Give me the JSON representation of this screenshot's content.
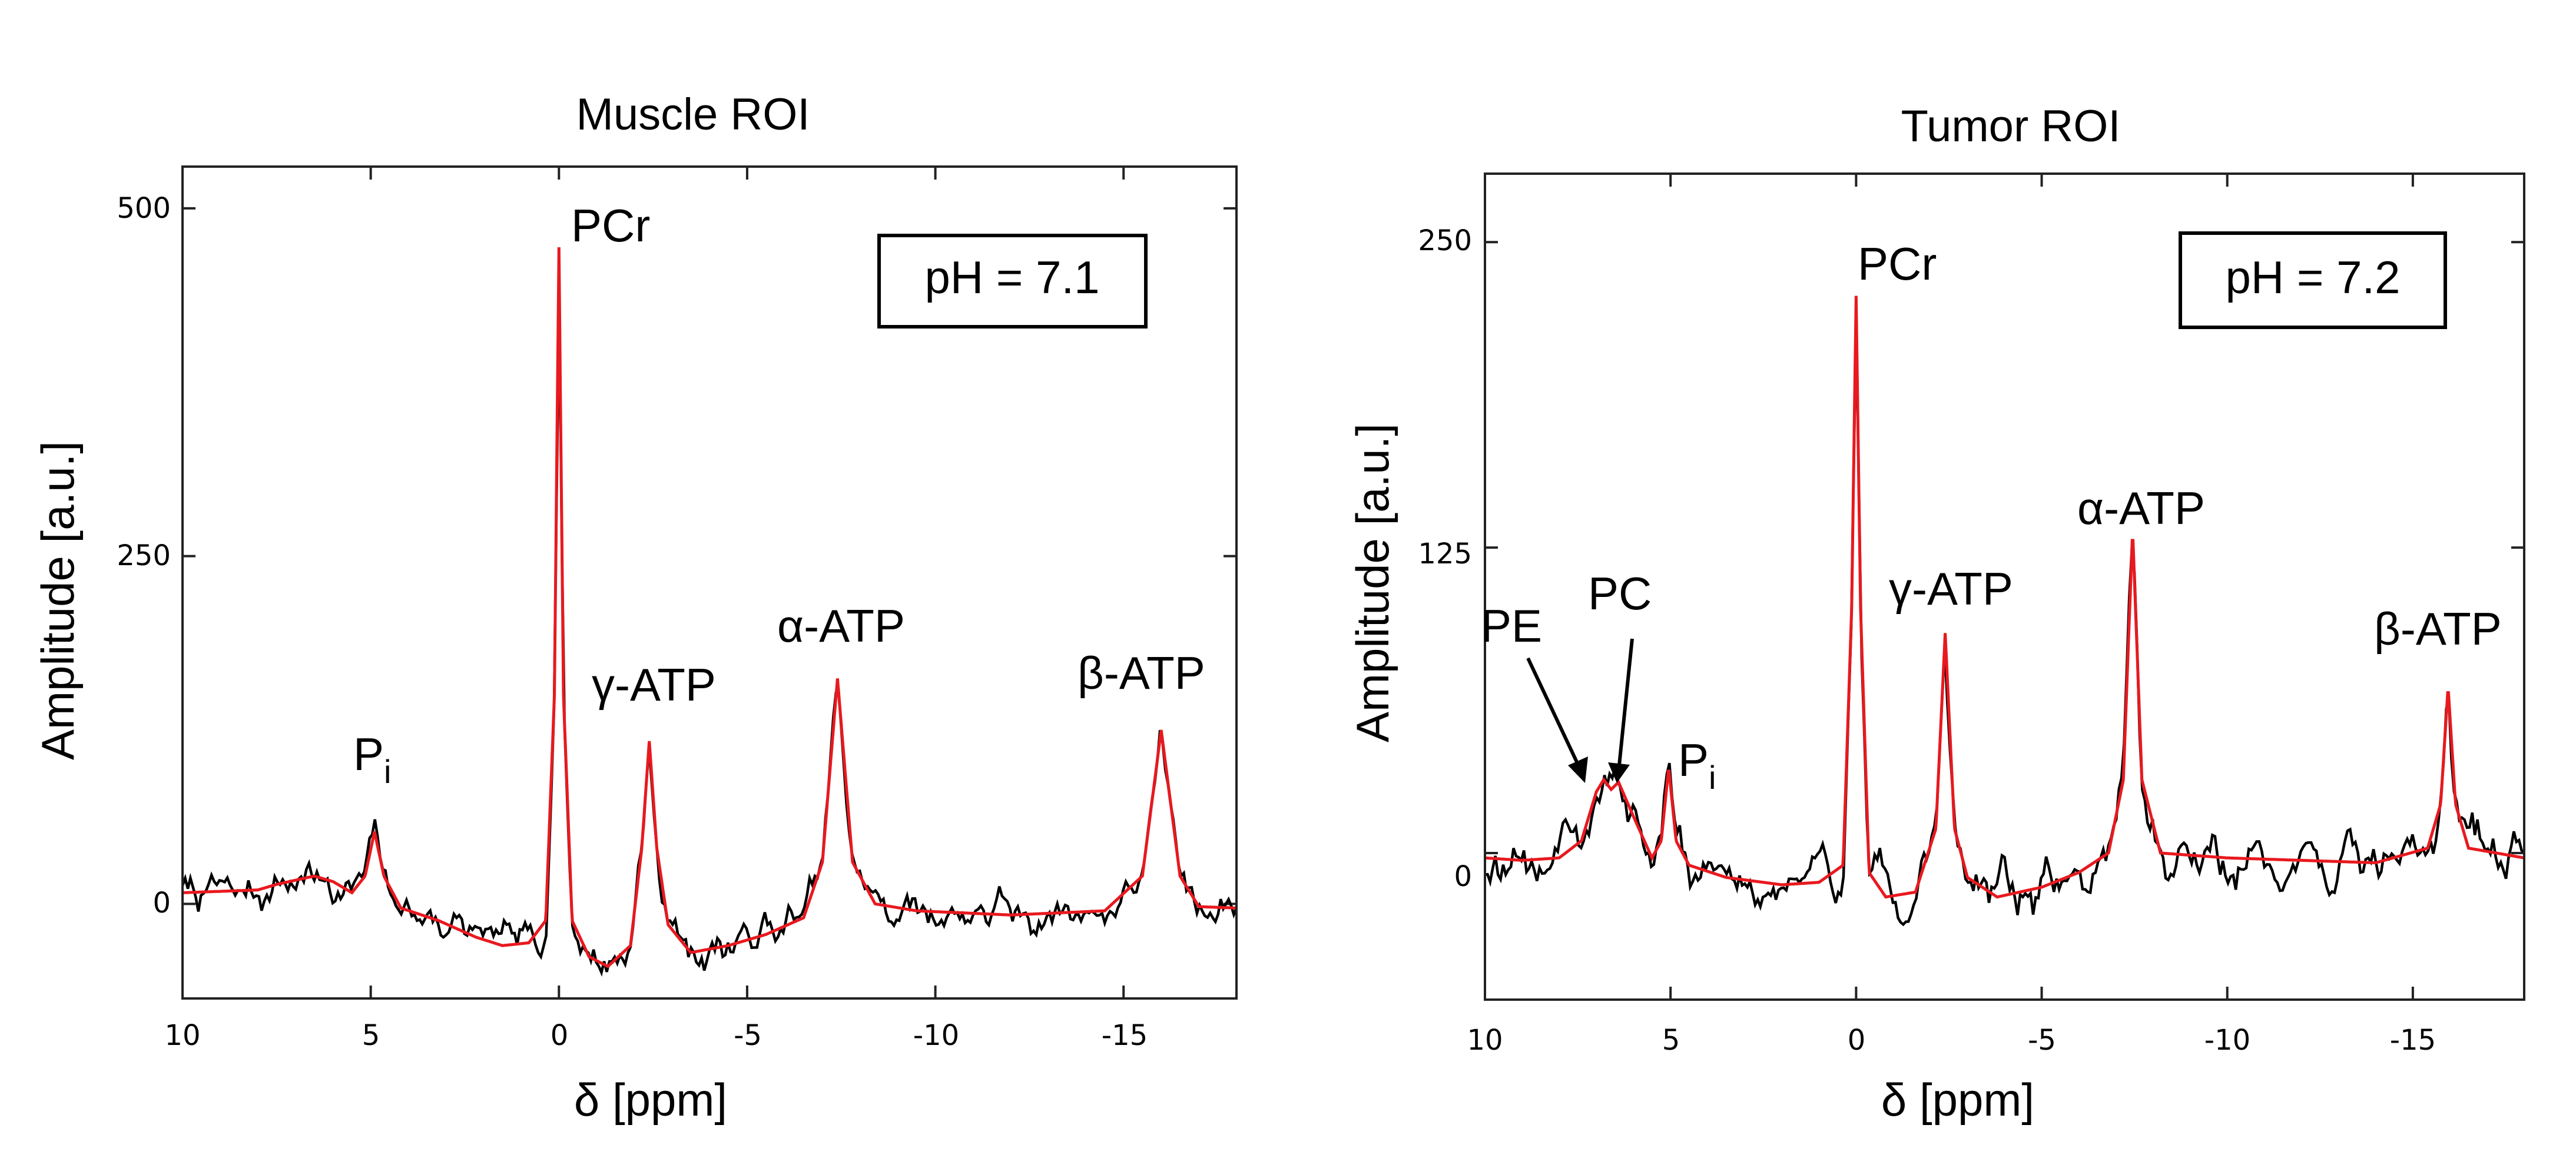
{
  "colors": {
    "data": "#000000",
    "fit": "#e8191f"
  },
  "chart_data": [
    {
      "type": "line",
      "title": "Muscle ROI",
      "xlabel": "δ [ppm]",
      "ylabel": "Amplitude [a.u.]",
      "xlim": [
        10,
        -18
      ],
      "ylim": [
        -68,
        530
      ],
      "xticks": [
        10,
        5,
        0,
        -5,
        -10,
        -15
      ],
      "xtick_labels": [
        "10",
        "5",
        "0",
        "-5",
        "-10",
        "-15"
      ],
      "yticks": [
        0,
        250,
        500
      ],
      "ytick_labels": [
        "0",
        "250",
        "500"
      ],
      "annotation_box": "pH = 7.1",
      "peak_labels": [
        {
          "id": "pi",
          "main": "P",
          "sub": "i"
        },
        {
          "id": "pcr",
          "main": "PCr"
        },
        {
          "id": "gatp",
          "main": "γ-ATP"
        },
        {
          "id": "aatp",
          "main": "α-ATP"
        },
        {
          "id": "batp",
          "main": "β-ATP"
        }
      ],
      "fit_points": [
        [
          10,
          8
        ],
        [
          8,
          10
        ],
        [
          7.5,
          14
        ],
        [
          6.5,
          20
        ],
        [
          6,
          16
        ],
        [
          5.5,
          8
        ],
        [
          5.15,
          20
        ],
        [
          4.9,
          52
        ],
        [
          4.65,
          20
        ],
        [
          4.2,
          -3
        ],
        [
          3.2,
          -12
        ],
        [
          2.2,
          -24
        ],
        [
          1.5,
          -30
        ],
        [
          0.8,
          -28
        ],
        [
          0.35,
          -12
        ],
        [
          0.12,
          150
        ],
        [
          0,
          472
        ],
        [
          -0.12,
          150
        ],
        [
          -0.35,
          -12
        ],
        [
          -0.8,
          -38
        ],
        [
          -1.3,
          -45
        ],
        [
          -1.9,
          -30
        ],
        [
          -2.2,
          40
        ],
        [
          -2.4,
          117
        ],
        [
          -2.6,
          40
        ],
        [
          -2.9,
          -15
        ],
        [
          -3.5,
          -35
        ],
        [
          -4.5,
          -30
        ],
        [
          -5.5,
          -22
        ],
        [
          -6.5,
          -10
        ],
        [
          -7,
          30
        ],
        [
          -7.4,
          162
        ],
        [
          -7.8,
          30
        ],
        [
          -8.4,
          0
        ],
        [
          -9.5,
          -5
        ],
        [
          -12,
          -8
        ],
        [
          -14.5,
          -5
        ],
        [
          -15.5,
          20
        ],
        [
          -16,
          125
        ],
        [
          -16.5,
          20
        ],
        [
          -17,
          -2
        ],
        [
          -18,
          -3
        ]
      ],
      "noise": {
        "amp": 14,
        "seed": 7,
        "step": 0.07
      }
    },
    {
      "type": "line",
      "title": "Tumor ROI",
      "xlabel": "δ [ppm]",
      "ylabel": "Amplitude [a.u.]",
      "xlim": [
        10,
        -18
      ],
      "ylim": [
        -60,
        278
      ],
      "xticks": [
        10,
        5,
        0,
        -5,
        -10,
        -15
      ],
      "xtick_labels": [
        "10",
        "5",
        "0",
        "-5",
        "-10",
        "-15"
      ],
      "yticks": [
        0,
        125,
        250
      ],
      "ytick_labels": [
        "0",
        "125",
        "250"
      ],
      "annotation_box": "pH = 7.2",
      "peak_labels": [
        {
          "id": "pe",
          "main": "PE"
        },
        {
          "id": "pc",
          "main": "PC"
        },
        {
          "id": "pi",
          "main": "P",
          "sub": "i"
        },
        {
          "id": "pcr",
          "main": "PCr"
        },
        {
          "id": "gatp",
          "main": "γ-ATP"
        },
        {
          "id": "aatp",
          "main": "α-ATP"
        },
        {
          "id": "batp",
          "main": "β-ATP"
        }
      ],
      "fit_points": [
        [
          10,
          -2
        ],
        [
          9,
          -3
        ],
        [
          8,
          -2
        ],
        [
          7.4,
          5
        ],
        [
          7,
          25
        ],
        [
          6.8,
          30
        ],
        [
          6.6,
          26
        ],
        [
          6.4,
          29
        ],
        [
          6.0,
          15
        ],
        [
          5.5,
          -2
        ],
        [
          5.25,
          5
        ],
        [
          5.05,
          35
        ],
        [
          4.85,
          5
        ],
        [
          4.5,
          -5
        ],
        [
          3.5,
          -10
        ],
        [
          2,
          -13
        ],
        [
          1,
          -12
        ],
        [
          0.35,
          -5
        ],
        [
          0.12,
          100
        ],
        [
          0,
          228
        ],
        [
          -0.12,
          100
        ],
        [
          -0.35,
          -8
        ],
        [
          -0.8,
          -18
        ],
        [
          -1.6,
          -16
        ],
        [
          -2.15,
          10
        ],
        [
          -2.4,
          90
        ],
        [
          -2.65,
          10
        ],
        [
          -3,
          -10
        ],
        [
          -3.8,
          -18
        ],
        [
          -5,
          -14
        ],
        [
          -6,
          -8
        ],
        [
          -6.8,
          0
        ],
        [
          -7.2,
          30
        ],
        [
          -7.45,
          132
        ],
        [
          -7.7,
          30
        ],
        [
          -8.2,
          0
        ],
        [
          -10,
          -2
        ],
        [
          -12,
          -3
        ],
        [
          -14,
          -4
        ],
        [
          -15.4,
          2
        ],
        [
          -15.75,
          20
        ],
        [
          -15.95,
          68
        ],
        [
          -16.15,
          20
        ],
        [
          -16.5,
          2
        ],
        [
          -18,
          -2
        ]
      ],
      "noise": {
        "amp": 11,
        "seed": 19,
        "step": 0.07
      }
    }
  ]
}
